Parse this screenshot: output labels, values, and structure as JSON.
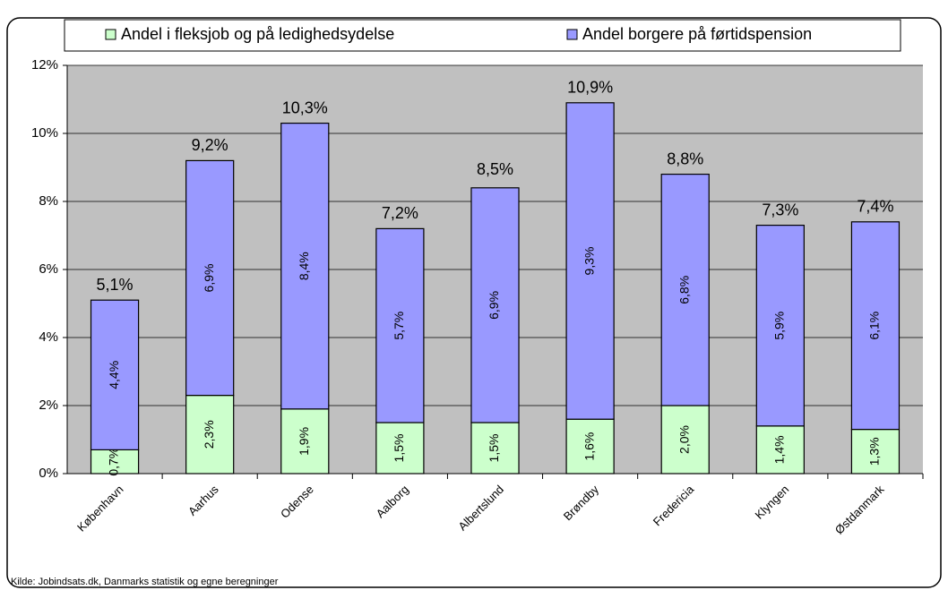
{
  "chart_data": {
    "type": "stacked_bar",
    "categories": [
      "København",
      "Aarhus",
      "Odense",
      "Aalborg",
      "Albertslund",
      "Brøndby",
      "Fredericia",
      "Klyngen",
      "Østdanmark"
    ],
    "series": [
      {
        "name": "Andel i fleksjob og på ledighedsydelse",
        "color": "#ccffcc",
        "values": [
          0.7,
          2.3,
          1.9,
          1.5,
          1.5,
          1.6,
          2.0,
          1.4,
          1.3
        ],
        "value_labels": [
          "0,7%",
          "2,3%",
          "1,9%",
          "1,5%",
          "1,5%",
          "1,6%",
          "2,0%",
          "1,4%",
          "1,3%"
        ]
      },
      {
        "name": "Andel borgere på førtidspension",
        "color": "#9999ff",
        "values": [
          4.4,
          6.9,
          8.4,
          5.7,
          6.9,
          9.3,
          6.8,
          5.9,
          6.1
        ],
        "value_labels": [
          "4,4%",
          "6,9%",
          "8,4%",
          "5,7%",
          "6,9%",
          "9,3%",
          "6,8%",
          "5,9%",
          "6,1%"
        ]
      }
    ],
    "totals": [
      5.1,
      9.2,
      10.3,
      7.2,
      8.5,
      10.9,
      8.8,
      7.3,
      7.4
    ],
    "total_labels": [
      "5,1%",
      "9,2%",
      "10,3%",
      "7,2%",
      "8,5%",
      "10,9%",
      "8,8%",
      "7,3%",
      "7,4%"
    ],
    "ylim": [
      0,
      12
    ],
    "yticks": [
      {
        "value": 0,
        "label": "0%"
      },
      {
        "value": 2,
        "label": "2%"
      },
      {
        "value": 4,
        "label": "4%"
      },
      {
        "value": 6,
        "label": "6%"
      },
      {
        "value": 8,
        "label": "8%"
      },
      {
        "value": 10,
        "label": "10%"
      },
      {
        "value": 12,
        "label": "12%"
      }
    ],
    "grid": true,
    "legend": "top",
    "source": "Kilde: Jobindsats.dk, Danmarks statistik og egne beregninger"
  }
}
